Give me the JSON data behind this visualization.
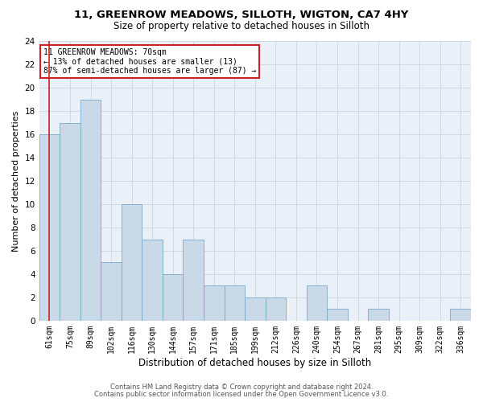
{
  "title1": "11, GREENROW MEADOWS, SILLOTH, WIGTON, CA7 4HY",
  "title2": "Size of property relative to detached houses in Silloth",
  "xlabel": "Distribution of detached houses by size in Silloth",
  "ylabel": "Number of detached properties",
  "categories": [
    "61sqm",
    "75sqm",
    "89sqm",
    "102sqm",
    "116sqm",
    "130sqm",
    "144sqm",
    "157sqm",
    "171sqm",
    "185sqm",
    "199sqm",
    "212sqm",
    "226sqm",
    "240sqm",
    "254sqm",
    "267sqm",
    "281sqm",
    "295sqm",
    "309sqm",
    "322sqm",
    "336sqm"
  ],
  "values": [
    16,
    17,
    19,
    5,
    10,
    7,
    4,
    7,
    3,
    3,
    2,
    2,
    0,
    3,
    1,
    0,
    1,
    0,
    0,
    0,
    1
  ],
  "bar_color": "#c9d9e8",
  "bar_edge_color": "#7aaac8",
  "vline_x": 0,
  "vline_color": "#cc2222",
  "annotation_line1": "11 GREENROW MEADOWS: 70sqm",
  "annotation_line2": "← 13% of detached houses are smaller (13)",
  "annotation_line3": "87% of semi-detached houses are larger (87) →",
  "annotation_box_color": "white",
  "annotation_box_edge_color": "#cc2222",
  "ylim": [
    0,
    24
  ],
  "yticks": [
    0,
    2,
    4,
    6,
    8,
    10,
    12,
    14,
    16,
    18,
    20,
    22,
    24
  ],
  "footer1": "Contains HM Land Registry data © Crown copyright and database right 2024.",
  "footer2": "Contains public sector information licensed under the Open Government Licence v3.0.",
  "grid_color": "#d0d8e4",
  "background_color": "#eaf0f7",
  "title1_fontsize": 9.5,
  "title2_fontsize": 8.5
}
